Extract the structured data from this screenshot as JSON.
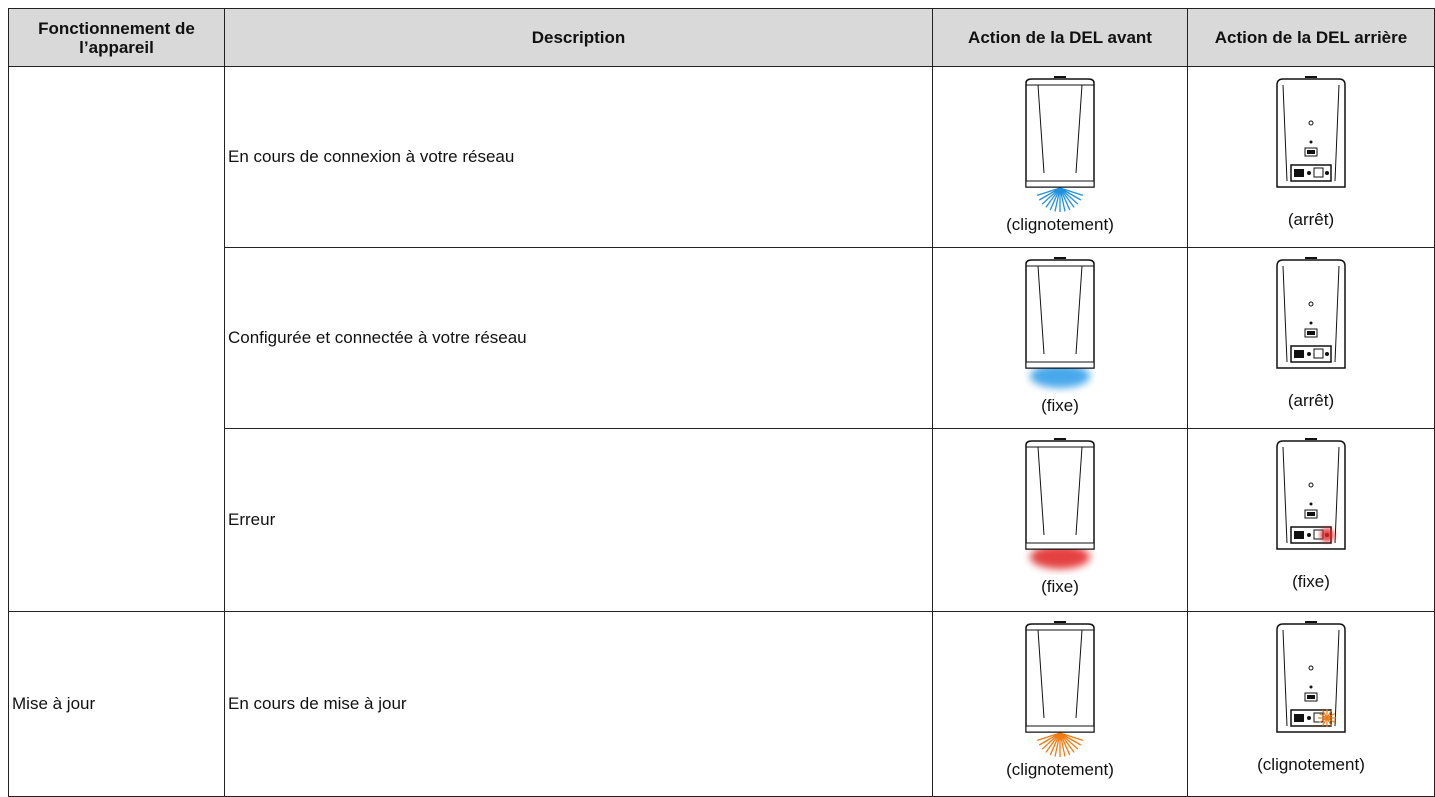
{
  "header": {
    "columns": [
      "Fonctionnement de l’appareil",
      "Description",
      "Action de la DEL avant",
      "Action de la DEL arrière"
    ]
  },
  "groups": [
    {
      "rows": [
        {
          "description": "En cours de connexion à votre réseau",
          "front": "(clignotement)",
          "rear": "(arrêt)"
        },
        {
          "description": "Configurée et connectée à votre réseau",
          "front": "(fixe)",
          "rear": "(arrêt)"
        },
        {
          "description": "Erreur",
          "front": "(fixe)",
          "rear": "(fixe)"
        }
      ]
    },
    {
      "function": "Mise à jour",
      "rows": [
        {
          "description": "En cours de mise à jour",
          "front": "(clignotement)",
          "rear": "(clignotement)"
        }
      ]
    }
  ]
}
